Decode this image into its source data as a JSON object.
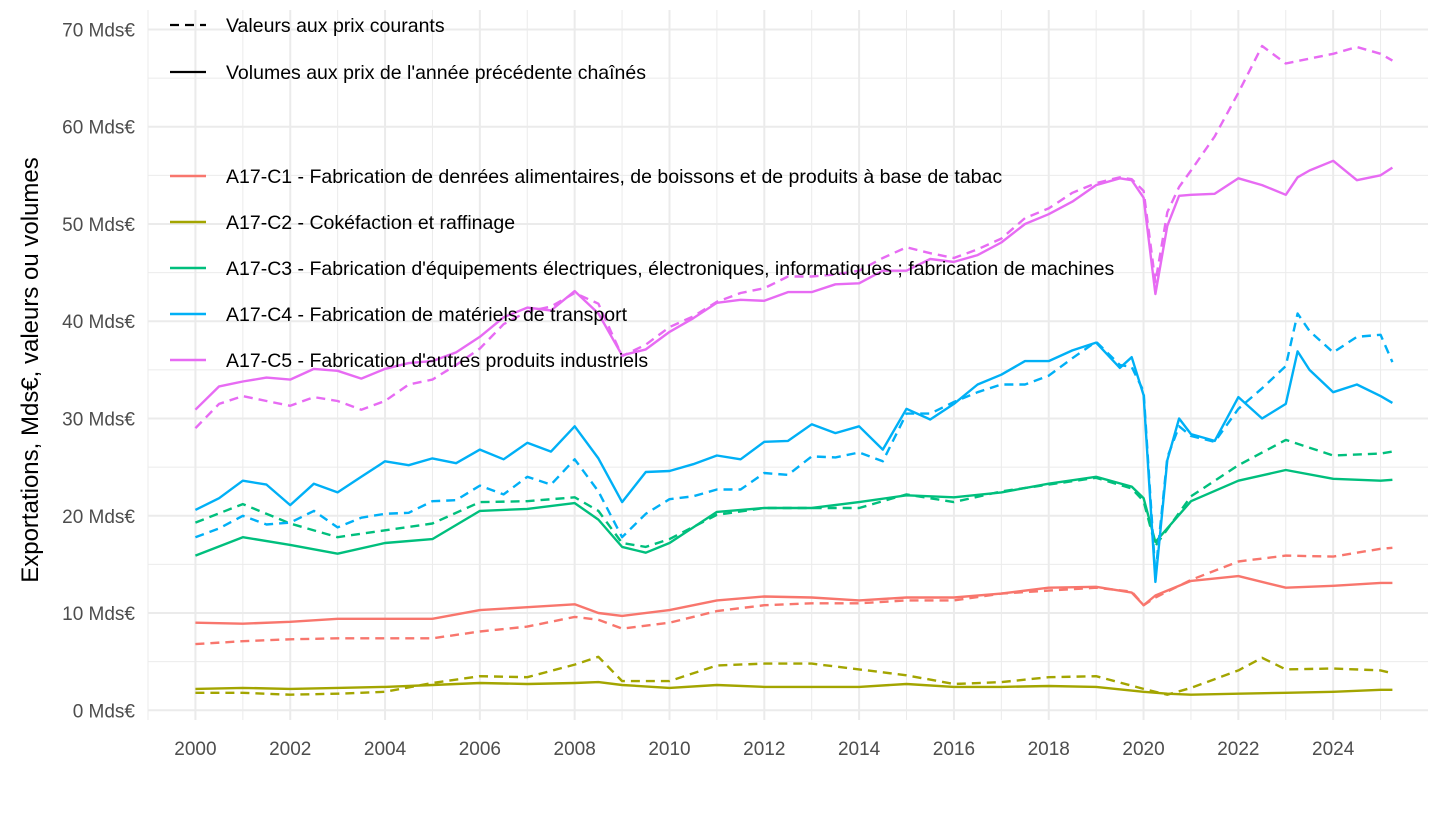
{
  "chart_data": {
    "type": "line",
    "title": "",
    "xlabel": "",
    "ylabel": "Exportations, Mds€, valeurs ou volumes",
    "xlim": [
      1999.0,
      2026.0
    ],
    "ylim": [
      -1,
      72
    ],
    "x_ticks": [
      2000,
      2002,
      2004,
      2006,
      2008,
      2010,
      2012,
      2014,
      2016,
      2018,
      2020,
      2022,
      2024
    ],
    "x_tick_labels": [
      "2000",
      "2002",
      "2004",
      "2006",
      "2008",
      "2010",
      "2012",
      "2014",
      "2016",
      "2018",
      "2020",
      "2022",
      "2024"
    ],
    "y_ticks": [
      0,
      10,
      20,
      30,
      40,
      50,
      60,
      70
    ],
    "y_tick_labels": [
      "0 Mds€",
      "10 Mds€",
      "20 Mds€",
      "30 Mds€",
      "40 Mds€",
      "50 Mds€",
      "60 Mds€",
      "70 Mds€"
    ],
    "grid": true,
    "legend_linetype": {
      "placement": "top-left",
      "entries": [
        {
          "label": "Valeurs aux prix courants",
          "dash": "dashed"
        },
        {
          "label": "Volumes aux prix de l'année précédente chaînés",
          "dash": "solid"
        }
      ]
    },
    "series": [
      {
        "name": "A17-C1 - Fabrication de denrées alimentaires, de boissons et de produits à base de tabac",
        "color": "#F8766D",
        "volumes": {
          "x": [
            2000,
            2001,
            2002,
            2003,
            2004,
            2005,
            2006,
            2007,
            2008,
            2008.5,
            2009,
            2010,
            2011,
            2012,
            2013,
            2014,
            2015,
            2016,
            2017,
            2018,
            2019,
            2019.75,
            2020.0,
            2020.25,
            2021,
            2022,
            2023,
            2024,
            2025,
            2025.25
          ],
          "values": [
            9.0,
            8.9,
            9.1,
            9.4,
            9.4,
            9.4,
            10.3,
            10.6,
            10.9,
            10.0,
            9.7,
            10.3,
            11.3,
            11.7,
            11.6,
            11.3,
            11.6,
            11.6,
            12.0,
            12.6,
            12.7,
            12.1,
            10.8,
            11.8,
            13.3,
            13.8,
            12.6,
            12.8,
            13.1,
            13.1
          ]
        },
        "values_courants": {
          "x": [
            2000,
            2001,
            2002,
            2003,
            2004,
            2005,
            2006,
            2007,
            2008,
            2008.5,
            2009,
            2010,
            2011,
            2012,
            2013,
            2014,
            2015,
            2016,
            2017,
            2018,
            2019,
            2019.75,
            2020.0,
            2020.25,
            2021,
            2022,
            2023,
            2024,
            2025,
            2025.25
          ],
          "values": [
            6.8,
            7.1,
            7.3,
            7.4,
            7.4,
            7.4,
            8.1,
            8.6,
            9.6,
            9.3,
            8.4,
            9.0,
            10.2,
            10.8,
            11.0,
            11.0,
            11.3,
            11.3,
            12.0,
            12.3,
            12.6,
            12.2,
            10.8,
            11.6,
            13.4,
            15.3,
            15.9,
            15.8,
            16.6,
            16.7
          ]
        }
      },
      {
        "name": "A17-C2 - Cokéfaction et raffinage",
        "color": "#A3A500",
        "volumes": {
          "x": [
            2000,
            2001,
            2002,
            2003,
            2004,
            2005,
            2006,
            2007,
            2008,
            2008.5,
            2009,
            2010,
            2011,
            2012,
            2013,
            2014,
            2015,
            2016,
            2017,
            2018,
            2019,
            2020,
            2020.5,
            2021,
            2022,
            2023,
            2024,
            2025,
            2025.25
          ],
          "values": [
            2.2,
            2.3,
            2.2,
            2.3,
            2.4,
            2.6,
            2.8,
            2.7,
            2.8,
            2.9,
            2.6,
            2.3,
            2.6,
            2.4,
            2.4,
            2.4,
            2.7,
            2.4,
            2.4,
            2.5,
            2.4,
            1.9,
            1.7,
            1.6,
            1.7,
            1.8,
            1.9,
            2.1,
            2.1
          ]
        },
        "values_courants": {
          "x": [
            2000,
            2001,
            2002,
            2003,
            2004,
            2005,
            2006,
            2007,
            2008,
            2008.5,
            2009,
            2010,
            2011,
            2012,
            2013,
            2014,
            2015,
            2016,
            2017,
            2018,
            2019,
            2020,
            2020.5,
            2021,
            2022,
            2022.5,
            2023,
            2024,
            2025,
            2025.25
          ],
          "values": [
            1.8,
            1.8,
            1.6,
            1.7,
            1.9,
            2.8,
            3.5,
            3.4,
            4.7,
            5.5,
            3.0,
            3.0,
            4.6,
            4.8,
            4.8,
            4.2,
            3.6,
            2.7,
            2.9,
            3.4,
            3.5,
            2.2,
            1.6,
            2.3,
            4.1,
            5.4,
            4.2,
            4.3,
            4.1,
            3.8
          ]
        }
      },
      {
        "name": "A17-C3 - Fabrication d'équipements électriques, électroniques, informatiques ; fabrication de machines",
        "color": "#00BF7D",
        "volumes": {
          "x": [
            2000,
            2001,
            2002,
            2003,
            2004,
            2005,
            2006,
            2007,
            2008,
            2008.5,
            2009,
            2009.5,
            2010,
            2011,
            2012,
            2013,
            2014,
            2015,
            2016,
            2017,
            2018,
            2019,
            2019.75,
            2020.0,
            2020.25,
            2021,
            2022,
            2023,
            2024,
            2025,
            2025.25
          ],
          "values": [
            15.9,
            17.8,
            17.0,
            16.1,
            17.2,
            17.6,
            20.5,
            20.7,
            21.3,
            19.6,
            16.8,
            16.2,
            17.2,
            20.4,
            20.8,
            20.8,
            21.4,
            22.1,
            21.9,
            22.4,
            23.3,
            24.0,
            23.0,
            21.8,
            17.3,
            21.5,
            23.6,
            24.7,
            23.8,
            23.6,
            23.7
          ]
        },
        "values_courants": {
          "x": [
            2000,
            2001,
            2002,
            2003,
            2004,
            2005,
            2006,
            2007,
            2008,
            2008.5,
            2009,
            2009.5,
            2010,
            2011,
            2012,
            2013,
            2014,
            2015,
            2016,
            2017,
            2018,
            2019,
            2019.75,
            2020.0,
            2020.25,
            2021,
            2022,
            2023,
            2024,
            2025,
            2025.25
          ],
          "values": [
            19.3,
            21.2,
            19.2,
            17.8,
            18.5,
            19.2,
            21.4,
            21.5,
            21.9,
            20.5,
            17.2,
            16.8,
            17.6,
            20.1,
            20.8,
            20.8,
            20.8,
            22.2,
            21.4,
            22.5,
            23.2,
            23.9,
            22.8,
            21.5,
            16.9,
            22.0,
            25.2,
            27.8,
            26.2,
            26.4,
            26.6
          ]
        }
      },
      {
        "name": "A17-C4 - Fabrication de matériels de transport",
        "color": "#00B0F6",
        "volumes": {
          "x": [
            2000,
            2000.5,
            2001,
            2001.5,
            2002,
            2002.5,
            2003,
            2003.5,
            2004,
            2004.5,
            2005,
            2005.5,
            2006,
            2006.5,
            2007,
            2007.5,
            2008,
            2008.5,
            2009,
            2009.5,
            2010,
            2010.5,
            2011,
            2011.5,
            2012,
            2012.5,
            2013,
            2013.5,
            2014,
            2014.5,
            2015,
            2015.5,
            2016,
            2016.5,
            2017,
            2017.5,
            2018,
            2018.5,
            2019,
            2019.5,
            2019.75,
            2020.0,
            2020.25,
            2020.5,
            2020.75,
            2021,
            2021.5,
            2022,
            2022.5,
            2023,
            2023.25,
            2023.5,
            2024,
            2024.5,
            2025,
            2025.25
          ],
          "values": [
            20.6,
            21.8,
            23.6,
            23.2,
            21.1,
            23.3,
            22.4,
            24.0,
            25.6,
            25.2,
            25.9,
            25.4,
            26.8,
            25.8,
            27.5,
            26.6,
            29.2,
            25.9,
            21.4,
            24.5,
            24.6,
            25.3,
            26.2,
            25.8,
            27.6,
            27.7,
            29.4,
            28.5,
            29.2,
            26.8,
            31.0,
            29.9,
            31.5,
            33.5,
            34.5,
            35.9,
            35.9,
            37.0,
            37.8,
            35.2,
            36.3,
            32.4,
            13.2,
            25.7,
            30.0,
            28.4,
            27.7,
            32.2,
            30.0,
            31.5,
            36.9,
            35.0,
            32.7,
            33.5,
            32.3,
            31.6
          ]
        },
        "values_courants": {
          "x": [
            2000,
            2000.5,
            2001,
            2001.5,
            2002,
            2002.5,
            2003,
            2003.5,
            2004,
            2004.5,
            2005,
            2005.5,
            2006,
            2006.5,
            2007,
            2007.5,
            2008,
            2008.5,
            2009,
            2009.5,
            2010,
            2010.5,
            2011,
            2011.5,
            2012,
            2012.5,
            2013,
            2013.5,
            2014,
            2014.5,
            2015,
            2015.5,
            2016,
            2016.5,
            2017,
            2017.5,
            2018,
            2018.5,
            2019,
            2019.5,
            2019.75,
            2020.0,
            2020.25,
            2020.5,
            2020.75,
            2021,
            2021.5,
            2022,
            2022.5,
            2023,
            2023.25,
            2023.5,
            2024,
            2024.5,
            2025,
            2025.25
          ],
          "values": [
            17.8,
            18.7,
            20.0,
            19.1,
            19.3,
            20.5,
            18.8,
            19.8,
            20.2,
            20.3,
            21.5,
            21.6,
            23.1,
            22.2,
            24.0,
            23.2,
            25.8,
            22.5,
            17.8,
            20.2,
            21.7,
            22.0,
            22.7,
            22.7,
            24.4,
            24.2,
            26.1,
            26.0,
            26.5,
            25.6,
            30.5,
            30.5,
            31.7,
            32.7,
            33.5,
            33.5,
            34.4,
            36.2,
            37.9,
            35.5,
            35.3,
            32.8,
            14.0,
            26.0,
            29.2,
            28.2,
            27.6,
            31.0,
            33.1,
            35.4,
            40.8,
            39.0,
            36.8,
            38.4,
            38.6,
            35.8
          ]
        }
      },
      {
        "name": "A17-C5 - Fabrication d'autres produits industriels",
        "color": "#E76BF3",
        "volumes": {
          "x": [
            2000,
            2000.5,
            2001,
            2001.5,
            2002,
            2002.5,
            2003,
            2003.5,
            2004,
            2004.5,
            2005,
            2005.5,
            2006,
            2006.5,
            2007,
            2007.5,
            2008,
            2008.5,
            2009,
            2009.5,
            2010,
            2010.5,
            2011,
            2011.5,
            2012,
            2012.5,
            2013,
            2013.5,
            2014,
            2014.5,
            2015,
            2015.5,
            2016,
            2016.5,
            2017,
            2017.5,
            2018,
            2018.5,
            2019,
            2019.5,
            2019.75,
            2020.0,
            2020.25,
            2020.5,
            2020.75,
            2021,
            2021.5,
            2022,
            2022.5,
            2023,
            2023.25,
            2023.5,
            2024,
            2024.5,
            2025,
            2025.25
          ],
          "values": [
            30.9,
            33.3,
            33.8,
            34.2,
            34.0,
            35.1,
            34.9,
            34.1,
            35.1,
            35.7,
            35.9,
            36.8,
            38.4,
            40.4,
            41.4,
            41.1,
            43.1,
            40.8,
            36.5,
            37.1,
            38.9,
            40.3,
            41.9,
            42.2,
            42.1,
            43.0,
            43.0,
            43.8,
            43.9,
            45.2,
            45.2,
            46.4,
            46.1,
            46.8,
            48.1,
            50.0,
            51.0,
            52.3,
            54.0,
            54.7,
            54.5,
            52.7,
            42.8,
            49.8,
            52.9,
            53.0,
            53.1,
            54.7,
            54.0,
            53.0,
            54.8,
            55.5,
            56.5,
            54.5,
            55.0,
            55.8
          ]
        },
        "values_courants": {
          "x": [
            2000,
            2000.5,
            2001,
            2001.5,
            2002,
            2002.5,
            2003,
            2003.5,
            2004,
            2004.5,
            2005,
            2005.5,
            2006,
            2006.5,
            2007,
            2007.5,
            2008,
            2008.5,
            2009,
            2009.5,
            2010,
            2010.5,
            2011,
            2011.5,
            2012,
            2012.5,
            2013,
            2013.5,
            2014,
            2014.5,
            2015,
            2015.5,
            2016,
            2016.5,
            2017,
            2017.5,
            2018,
            2018.5,
            2019,
            2019.5,
            2019.75,
            2020.0,
            2020.25,
            2020.5,
            2020.75,
            2021,
            2021.5,
            2022,
            2022.5,
            2023,
            2023.5,
            2024,
            2024.5,
            2025,
            2025.25
          ],
          "values": [
            29.0,
            31.5,
            32.3,
            31.8,
            31.3,
            32.2,
            31.8,
            30.9,
            31.8,
            33.5,
            34.0,
            35.5,
            37.2,
            39.7,
            41.0,
            41.5,
            42.9,
            41.8,
            36.4,
            37.6,
            39.4,
            40.5,
            42.0,
            42.9,
            43.4,
            44.6,
            44.6,
            44.8,
            45.2,
            46.5,
            47.6,
            47.0,
            46.5,
            47.4,
            48.5,
            50.6,
            51.6,
            53.2,
            54.2,
            54.8,
            54.6,
            53.4,
            44.0,
            51.2,
            53.8,
            55.5,
            59.0,
            63.5,
            68.3,
            66.5,
            67.0,
            67.5,
            68.2,
            67.5,
            66.8
          ]
        }
      }
    ]
  }
}
